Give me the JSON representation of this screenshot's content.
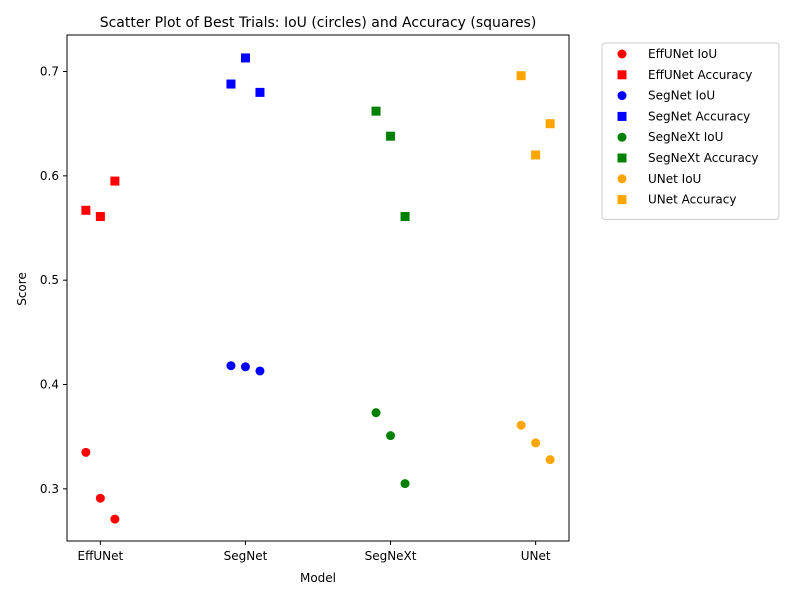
{
  "chart_data": {
    "type": "scatter",
    "title": "Scatter Plot of Best Trials: IoU (circles) and Accuracy (squares)",
    "xlabel": "Model",
    "ylabel": "Score",
    "categories": [
      "EffUNet",
      "SegNet",
      "SegNeXt",
      "UNet"
    ],
    "ylim": [
      0.25,
      0.735
    ],
    "yticks": [
      "0.3",
      "0.4",
      "0.5",
      "0.6",
      "0.7"
    ],
    "grid": false,
    "legend_position": "outside-top-right",
    "series": [
      {
        "name": "EffUNet IoU",
        "marker": "circle",
        "color": "#ff0000",
        "points": [
          {
            "x": -0.1,
            "y": 0.335
          },
          {
            "x": 0.0,
            "y": 0.291
          },
          {
            "x": 0.1,
            "y": 0.271
          }
        ]
      },
      {
        "name": "EffUNet Accuracy",
        "marker": "square",
        "color": "#ff0000",
        "points": [
          {
            "x": -0.1,
            "y": 0.567
          },
          {
            "x": 0.0,
            "y": 0.561
          },
          {
            "x": 0.1,
            "y": 0.595
          }
        ]
      },
      {
        "name": "SegNet IoU",
        "marker": "circle",
        "color": "#0000ff",
        "points": [
          {
            "x": 0.9,
            "y": 0.418
          },
          {
            "x": 1.0,
            "y": 0.417
          },
          {
            "x": 1.1,
            "y": 0.413
          }
        ]
      },
      {
        "name": "SegNet Accuracy",
        "marker": "square",
        "color": "#0000ff",
        "points": [
          {
            "x": 0.9,
            "y": 0.688
          },
          {
            "x": 1.0,
            "y": 0.713
          },
          {
            "x": 1.1,
            "y": 0.68
          }
        ]
      },
      {
        "name": "SegNeXt IoU",
        "marker": "circle",
        "color": "#008000",
        "points": [
          {
            "x": 1.9,
            "y": 0.373
          },
          {
            "x": 2.0,
            "y": 0.351
          },
          {
            "x": 2.1,
            "y": 0.305
          }
        ]
      },
      {
        "name": "SegNeXt Accuracy",
        "marker": "square",
        "color": "#008000",
        "points": [
          {
            "x": 1.9,
            "y": 0.662
          },
          {
            "x": 2.0,
            "y": 0.638
          },
          {
            "x": 2.1,
            "y": 0.561
          }
        ]
      },
      {
        "name": "UNet IoU",
        "marker": "circle",
        "color": "#ffa500",
        "points": [
          {
            "x": 2.9,
            "y": 0.361
          },
          {
            "x": 3.0,
            "y": 0.344
          },
          {
            "x": 3.1,
            "y": 0.328
          }
        ]
      },
      {
        "name": "UNet Accuracy",
        "marker": "square",
        "color": "#ffa500",
        "points": [
          {
            "x": 2.9,
            "y": 0.696
          },
          {
            "x": 3.0,
            "y": 0.62
          },
          {
            "x": 3.1,
            "y": 0.65
          }
        ]
      }
    ]
  }
}
